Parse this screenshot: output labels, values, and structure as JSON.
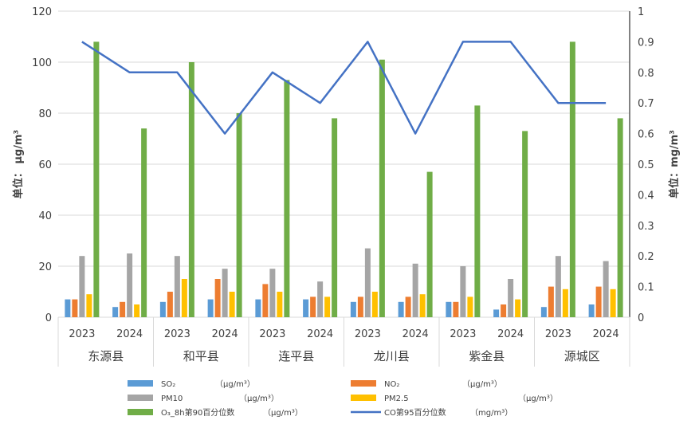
{
  "chart_data": {
    "type": "bar",
    "counties": [
      "东源县",
      "和平县",
      "连平县",
      "龙川县",
      "紫金县",
      "源城区"
    ],
    "years": [
      "2023",
      "2024"
    ],
    "left_axis": {
      "label": "单位： μg/m³",
      "ylim": [
        0,
        120
      ],
      "ticks": [
        0,
        20,
        40,
        60,
        80,
        100,
        120
      ]
    },
    "right_axis": {
      "label": "单位：mg/m³",
      "ylim": [
        0,
        1
      ],
      "ticks": [
        "0",
        "0.1",
        "0.2",
        "0.3",
        "0.4",
        "0.5",
        "0.6",
        "0.7",
        "0.8",
        "0.9",
        "1"
      ]
    },
    "grid": true,
    "legend_position": "bottom",
    "series": [
      {
        "name": "SO₂",
        "unit": "（μg/m³）",
        "type": "bar",
        "axis": "left",
        "color": "#5B9BD5",
        "values": [
          7,
          4,
          6,
          7,
          7,
          7,
          6,
          6,
          6,
          3,
          4,
          5
        ]
      },
      {
        "name": "NO₂",
        "unit": "（μg/m³）",
        "type": "bar",
        "axis": "left",
        "color": "#ED7D31",
        "values": [
          7,
          6,
          10,
          15,
          13,
          8,
          8,
          8,
          6,
          5,
          12,
          12
        ]
      },
      {
        "name": "PM10",
        "unit": "（μg/m³）",
        "type": "bar",
        "axis": "left",
        "color": "#A5A5A5",
        "values": [
          24,
          25,
          24,
          19,
          19,
          14,
          27,
          21,
          20,
          15,
          24,
          22
        ]
      },
      {
        "name": "PM2.5",
        "unit": "（μg/m³）",
        "type": "bar",
        "axis": "left",
        "color": "#FFC000",
        "values": [
          9,
          5,
          15,
          10,
          10,
          8,
          10,
          9,
          8,
          7,
          11,
          11
        ]
      },
      {
        "name": "O₃_8h第90百分位数",
        "unit": "（μg/m³）",
        "type": "bar",
        "axis": "left",
        "color": "#70AD47",
        "values": [
          108,
          74,
          100,
          80,
          93,
          78,
          101,
          57,
          83,
          73,
          108,
          78
        ]
      },
      {
        "name": "CO第95百分位数",
        "unit": "（mg/m³）",
        "type": "line",
        "axis": "right",
        "color": "#4472C4",
        "values": [
          0.9,
          0.8,
          0.8,
          0.6,
          0.8,
          0.7,
          0.9,
          0.6,
          0.9,
          0.9,
          0.7,
          0.7
        ]
      }
    ]
  }
}
